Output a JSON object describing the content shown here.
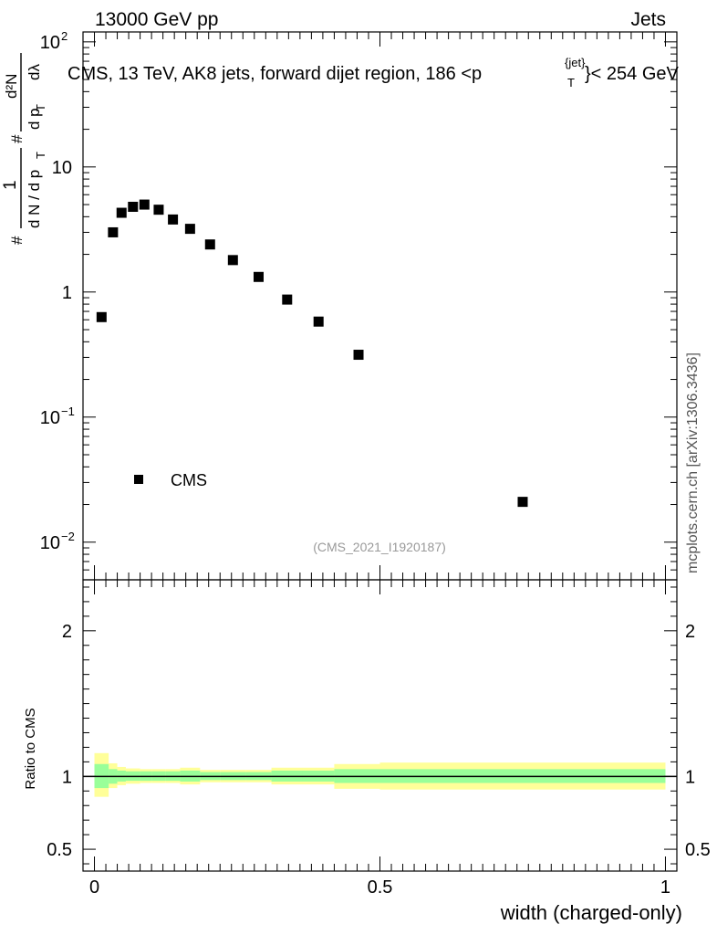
{
  "header": {
    "left": "13000 GeV pp",
    "right": "Jets"
  },
  "title": {
    "main": "CMS, 13 TeV, AK8 jets, forward dijet region, 186 <p",
    "sup": "{jet}",
    "sub": "T",
    "tail": "}< 254 GeV"
  },
  "ylabel_parts": [
    "#",
    "1",
    "d N / d p",
    "T",
    "#",
    "d p",
    "T",
    "d²N",
    "dλ"
  ],
  "side_label": "mcplots.cern.ch [arXiv:1306.3436]",
  "analysis_id": "(CMS_2021_I1920187)",
  "legend": {
    "label": "CMS"
  },
  "ratio": {
    "ylabel": "Ratio to CMS"
  },
  "xlabel": "width (charged-only)",
  "colors": {
    "band_outer": "#ffff99",
    "band_inner": "#99ff99",
    "marker": "#000000"
  },
  "chart_data": [
    {
      "type": "scatter",
      "name": "main",
      "yscale": "log",
      "ylim": [
        0.005,
        120
      ],
      "xlim": [
        -0.02,
        1.02
      ],
      "y_ticks": [
        {
          "v": 0.01,
          "base": "10",
          "exp": "−2"
        },
        {
          "v": 0.1,
          "base": "10",
          "exp": "−1"
        },
        {
          "v": 1,
          "base": "1",
          "exp": ""
        },
        {
          "v": 10,
          "base": "10",
          "exp": ""
        },
        {
          "v": 100,
          "base": "10",
          "exp": "2"
        }
      ],
      "series": [
        {
          "name": "CMS",
          "x": [
            0.0125,
            0.0325,
            0.0475,
            0.0675,
            0.0875,
            0.1125,
            0.1375,
            0.1675,
            0.2025,
            0.2425,
            0.2875,
            0.3375,
            0.3925,
            0.4625,
            0.75
          ],
          "y": [
            0.63,
            3.0,
            4.3,
            4.8,
            5.0,
            4.55,
            3.8,
            3.2,
            2.4,
            1.8,
            1.32,
            0.87,
            0.58,
            0.315,
            0.021
          ]
        }
      ]
    },
    {
      "type": "area",
      "name": "ratio",
      "ylim": [
        0.35,
        2.35
      ],
      "xlim": [
        -0.02,
        1.02
      ],
      "y_ticks": [
        "0.5",
        "1",
        "2"
      ],
      "x_ticks": [
        "0",
        "0.5",
        "1"
      ],
      "bins": [
        0.0,
        0.025,
        0.04,
        0.055,
        0.08,
        0.1,
        0.125,
        0.15,
        0.185,
        0.22,
        0.265,
        0.31,
        0.365,
        0.42,
        0.5,
        1.0
      ],
      "inner_lo": [
        0.92,
        0.95,
        0.965,
        0.97,
        0.97,
        0.97,
        0.97,
        0.965,
        0.975,
        0.975,
        0.975,
        0.965,
        0.965,
        0.955,
        0.955
      ],
      "inner_hi": [
        1.085,
        1.05,
        1.04,
        1.035,
        1.035,
        1.035,
        1.035,
        1.04,
        1.03,
        1.03,
        1.03,
        1.04,
        1.04,
        1.05,
        1.05
      ],
      "outer_lo": [
        0.86,
        0.92,
        0.94,
        0.95,
        0.955,
        0.955,
        0.955,
        0.945,
        0.96,
        0.96,
        0.96,
        0.945,
        0.945,
        0.915,
        0.91
      ],
      "outer_hi": [
        1.16,
        1.09,
        1.065,
        1.055,
        1.05,
        1.05,
        1.05,
        1.06,
        1.045,
        1.045,
        1.045,
        1.06,
        1.06,
        1.085,
        1.095
      ],
      "line": 1.0
    }
  ]
}
